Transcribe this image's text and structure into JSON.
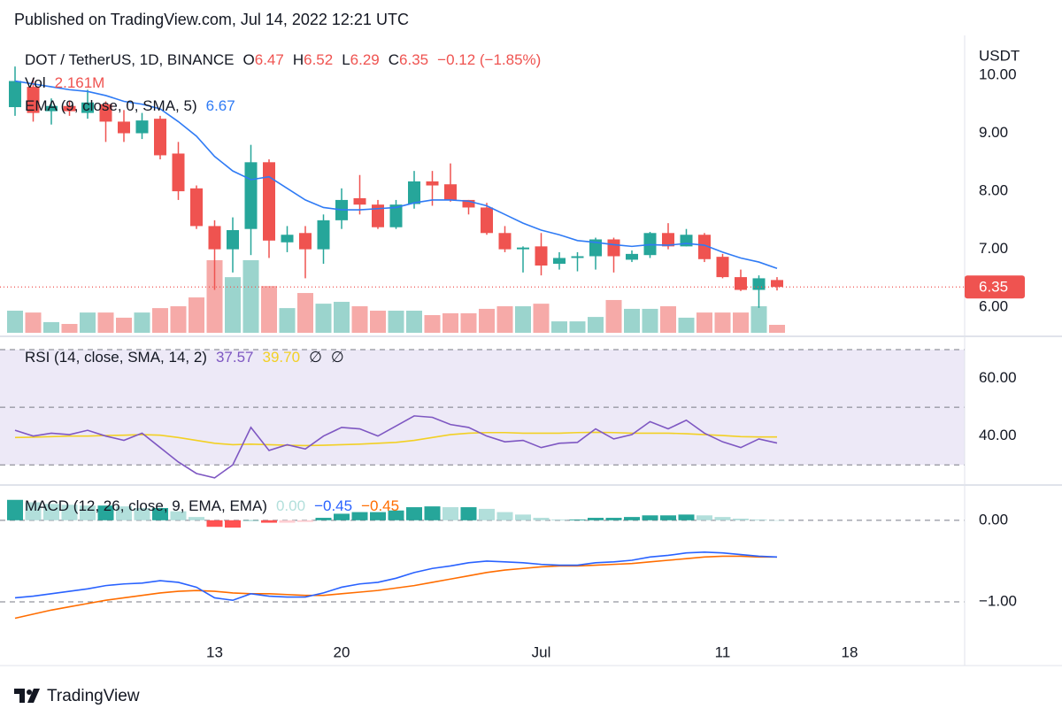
{
  "published": "Published on TradingView.com, Jul 14, 2022 12:21 UTC",
  "brand": "TradingView",
  "chart_data": {
    "type": "candlestick",
    "title": "DOT / TetherUS, 1D, BINANCE",
    "y_axis_label": "USDT",
    "categories": [
      null,
      null,
      null,
      null,
      null,
      null,
      null,
      null,
      null,
      null,
      null,
      "13",
      null,
      null,
      null,
      null,
      null,
      null,
      "20",
      null,
      null,
      null,
      null,
      null,
      null,
      null,
      null,
      null,
      null,
      "Jul",
      null,
      null,
      null,
      null,
      null,
      null,
      null,
      null,
      null,
      "11",
      null,
      null,
      null,
      null,
      null,
      null,
      "18"
    ],
    "open": [
      9.45,
      9.8,
      9.38,
      9.47,
      9.35,
      9.5,
      9.2,
      9.0,
      9.25,
      8.65,
      8.05,
      7.4,
      7.0,
      7.35,
      8.5,
      7.12,
      7.28,
      7.0,
      7.5,
      7.88,
      7.77,
      7.38,
      7.78,
      8.17,
      8.12,
      7.85,
      7.72,
      7.28,
      7.0,
      7.05,
      6.75,
      6.85,
      6.88,
      7.17,
      6.82,
      6.9,
      7.28,
      7.05,
      7.25,
      6.87,
      6.52,
      6.3,
      6.47,
      null,
      null,
      null,
      null
    ],
    "high": [
      10.15,
      9.95,
      9.6,
      9.55,
      9.75,
      9.55,
      9.4,
      9.35,
      9.3,
      8.85,
      8.1,
      7.5,
      7.55,
      8.8,
      8.55,
      7.4,
      7.4,
      7.6,
      8.05,
      8.28,
      7.85,
      7.85,
      8.35,
      8.35,
      8.48,
      7.85,
      7.8,
      7.4,
      7.05,
      7.28,
      6.95,
      6.95,
      7.2,
      7.2,
      6.98,
      7.3,
      7.45,
      7.35,
      7.28,
      6.92,
      6.65,
      6.55,
      6.52,
      null,
      null,
      null,
      null
    ],
    "low": [
      9.3,
      9.2,
      9.15,
      9.3,
      9.25,
      8.85,
      8.85,
      8.9,
      8.55,
      7.85,
      7.35,
      6.3,
      6.6,
      6.9,
      6.85,
      6.95,
      6.5,
      6.75,
      7.35,
      7.6,
      7.35,
      7.35,
      7.7,
      7.75,
      7.82,
      7.6,
      7.25,
      6.95,
      6.6,
      6.55,
      6.65,
      6.62,
      6.65,
      6.6,
      6.78,
      6.85,
      7.0,
      7.05,
      6.78,
      6.5,
      6.28,
      5.99,
      6.29,
      null,
      null,
      null,
      null
    ],
    "close": [
      9.9,
      9.35,
      9.47,
      9.38,
      9.53,
      9.2,
      9.0,
      9.22,
      8.62,
      8.0,
      7.4,
      7.0,
      7.33,
      8.5,
      7.15,
      7.25,
      7.0,
      7.5,
      7.85,
      7.77,
      7.38,
      7.77,
      8.17,
      8.1,
      7.85,
      7.72,
      7.28,
      7.0,
      7.03,
      6.72,
      6.85,
      6.88,
      7.17,
      6.88,
      6.92,
      7.28,
      7.05,
      7.25,
      6.83,
      6.52,
      6.3,
      6.5,
      6.35,
      null,
      null,
      null,
      null
    ],
    "up_color": "#26a69a",
    "down_color": "#ef5350",
    "ylim": [
      5.53,
      10.61
    ],
    "yticks": [
      {
        "value": 10,
        "label": "10.00"
      },
      {
        "value": 9,
        "label": "9.00"
      },
      {
        "value": 8,
        "label": "8.00"
      },
      {
        "value": 7,
        "label": "7.00"
      },
      {
        "value": 6,
        "label": "6.00"
      }
    ],
    "legend": {
      "open_label": "O",
      "high_label": "H",
      "low_label": "L",
      "close_label": "C",
      "change": "−0.12 (−1.85%)"
    },
    "volume": {
      "name": "Vol",
      "value_label": "2.161M",
      "up_color": "#9bd4cd",
      "down_color": "#f6aaa8",
      "values": [
        6.0,
        5.5,
        2.9,
        2.4,
        5.5,
        5.5,
        4.1,
        5.5,
        6.7,
        7.2,
        9.6,
        19.7,
        15.1,
        19.7,
        12.7,
        6.7,
        10.8,
        7.9,
        8.4,
        7.2,
        6.0,
        6.0,
        6.0,
        4.8,
        5.3,
        5.3,
        6.5,
        7.2,
        7.2,
        7.9,
        3.1,
        3.1,
        4.3,
        8.9,
        6.5,
        6.5,
        7.2,
        4.1,
        5.5,
        5.5,
        5.5,
        7.2,
        2.161,
        null,
        null,
        null,
        null
      ]
    },
    "ema": {
      "name": "EMA (9, close, 0, SMA, 5)",
      "color": "#2f7bf5",
      "values": [
        9.9,
        9.85,
        9.8,
        9.75,
        9.72,
        9.65,
        9.55,
        9.5,
        9.42,
        9.2,
        8.95,
        8.6,
        8.35,
        8.2,
        8.25,
        8.05,
        7.85,
        7.72,
        7.68,
        7.68,
        7.7,
        7.72,
        7.8,
        7.85,
        7.85,
        7.83,
        7.75,
        7.6,
        7.45,
        7.33,
        7.25,
        7.15,
        7.12,
        7.08,
        7.05,
        7.08,
        7.07,
        7.1,
        7.07,
        6.95,
        6.85,
        6.78,
        6.67,
        null,
        null,
        null,
        null
      ]
    },
    "rsi": {
      "type": "line",
      "title": "RSI (14, close, SMA, 14, 2)",
      "na_symbols": [
        "∅",
        "∅"
      ],
      "ylim": [
        23,
        74
      ],
      "yticks": [
        {
          "value": 60,
          "label": "60.00"
        },
        {
          "value": 40,
          "label": "40.00"
        }
      ],
      "bands": [
        70,
        50,
        30
      ],
      "band_fill": "#ede9f7",
      "series": [
        {
          "color": "#7e57c2",
          "values": [
            42,
            40,
            41,
            40.5,
            42,
            40,
            38.5,
            41,
            36,
            31,
            27,
            25.5,
            30,
            43,
            35,
            37,
            35.5,
            40,
            43,
            42.5,
            40,
            43.5,
            47,
            46.5,
            44,
            43,
            40,
            38,
            38.5,
            36,
            37.5,
            37.8,
            42.5,
            39,
            40.5,
            45,
            42.5,
            45.5,
            41,
            38,
            36,
            39,
            37.57,
            null,
            null,
            null,
            null
          ]
        },
        {
          "color": "#f2d024",
          "value_label": "39.70",
          "values": [
            39.5,
            39.6,
            39.8,
            40,
            40,
            40.2,
            40.3,
            40.5,
            40.3,
            39.5,
            38.5,
            37.5,
            37,
            37.2,
            37,
            36.8,
            36.7,
            36.8,
            37,
            37.2,
            37.5,
            37.8,
            38.5,
            39.5,
            40.5,
            41,
            41.2,
            41.2,
            41,
            41,
            41,
            41.2,
            41.3,
            41.2,
            41,
            41,
            41,
            40.8,
            40.5,
            40.2,
            39.8,
            39.7,
            39.7,
            null,
            null,
            null,
            null
          ]
        }
      ]
    },
    "macd": {
      "type": "bar",
      "title": "MACD (12, 26, close, 9, EMA, EMA)",
      "ylim": [
        -1.78,
        0.41
      ],
      "yticks": [
        {
          "value": 0,
          "label": "0.00"
        },
        {
          "value": -1,
          "label": "−1.00"
        }
      ],
      "histogram": {
        "value_label": "0.00",
        "colors": [
          "#26a69a",
          "#b2dfdb",
          "#ffcdd2",
          "#ff5252"
        ],
        "values": [
          0.25,
          0.22,
          0.2,
          0.19,
          0.18,
          0.18,
          0.17,
          0.15,
          0.15,
          0.11,
          0.04,
          -0.08,
          -0.09,
          0,
          -0.03,
          -0.03,
          -0.02,
          0.03,
          0.08,
          0.1,
          0.1,
          0.12,
          0.16,
          0.17,
          0.16,
          0.16,
          0.14,
          0.1,
          0.07,
          0.03,
          0.01,
          0.01,
          0.03,
          0.03,
          0.04,
          0.06,
          0.06,
          0.07,
          0.06,
          0.04,
          0.02,
          0.01,
          0,
          null,
          null,
          null,
          null
        ]
      },
      "series": [
        {
          "color": "#2962ff",
          "value_label": "−0.45",
          "values": [
            -0.95,
            -0.93,
            -0.9,
            -0.87,
            -0.84,
            -0.8,
            -0.78,
            -0.77,
            -0.74,
            -0.76,
            -0.82,
            -0.95,
            -0.98,
            -0.9,
            -0.93,
            -0.94,
            -0.94,
            -0.89,
            -0.82,
            -0.78,
            -0.76,
            -0.71,
            -0.64,
            -0.59,
            -0.56,
            -0.52,
            -0.5,
            -0.51,
            -0.52,
            -0.54,
            -0.55,
            -0.55,
            -0.52,
            -0.51,
            -0.49,
            -0.45,
            -0.43,
            -0.4,
            -0.39,
            -0.4,
            -0.42,
            -0.44,
            -0.45,
            null,
            null,
            null,
            null
          ]
        },
        {
          "color": "#ff6d00",
          "value_label": "−0.45",
          "values": [
            -1.2,
            -1.15,
            -1.1,
            -1.06,
            -1.02,
            -0.98,
            -0.95,
            -0.92,
            -0.89,
            -0.87,
            -0.86,
            -0.87,
            -0.89,
            -0.9,
            -0.9,
            -0.91,
            -0.92,
            -0.92,
            -0.9,
            -0.88,
            -0.86,
            -0.83,
            -0.8,
            -0.76,
            -0.72,
            -0.68,
            -0.64,
            -0.61,
            -0.59,
            -0.57,
            -0.56,
            -0.56,
            -0.55,
            -0.54,
            -0.53,
            -0.51,
            -0.49,
            -0.47,
            -0.45,
            -0.44,
            -0.44,
            -0.45,
            -0.45,
            null,
            null,
            null,
            null
          ]
        }
      ]
    }
  }
}
